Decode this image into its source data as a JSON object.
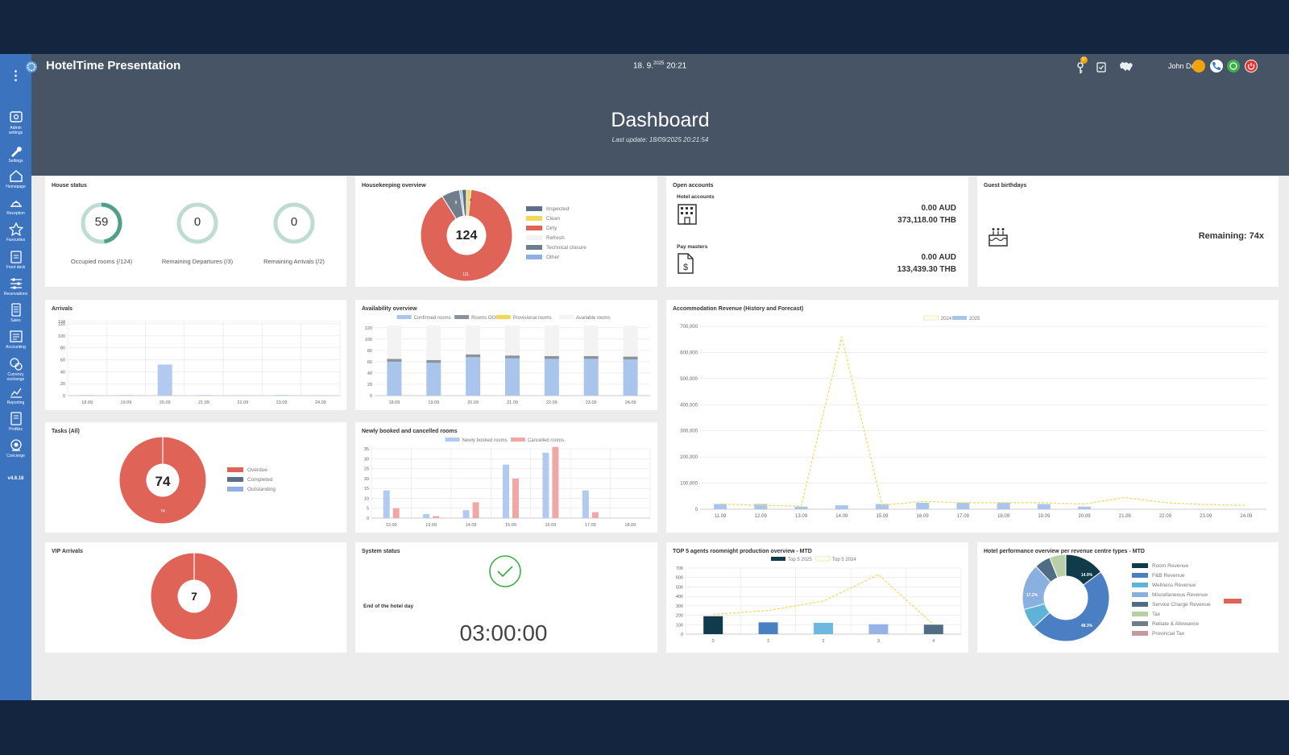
{
  "app": {
    "title": "HotelTime Presentation",
    "date": "18. 9.",
    "year_sup": "2025",
    "time": "20:21",
    "user": "John Does",
    "notification_badge": "57",
    "version": "v4.6.16"
  },
  "header": {
    "title": "Dashboard",
    "subtitle": "Last update: 18/09/2025 20:21:54"
  },
  "sidebar": {
    "items": [
      {
        "label1": "Admin",
        "label2": "settings",
        "icon": "gear-box-icon"
      },
      {
        "label1": "Settings",
        "label2": "",
        "icon": "wrench-icon"
      },
      {
        "label1": "Homepage",
        "label2": "",
        "icon": "home-icon"
      },
      {
        "label1": "Reception",
        "label2": "",
        "icon": "bell-icon"
      },
      {
        "label1": "Favourites",
        "label2": "",
        "icon": "star-icon"
      },
      {
        "label1": "Front desk",
        "label2": "",
        "icon": "clipboard-icon"
      },
      {
        "label1": "Reservations",
        "label2": "",
        "icon": "sliders-icon"
      },
      {
        "label1": "Sales",
        "label2": "",
        "icon": "document-icon"
      },
      {
        "label1": "Accounting",
        "label2": "",
        "icon": "ledger-icon"
      },
      {
        "label1": "Currency",
        "label2": "exchange",
        "icon": "coins-icon"
      },
      {
        "label1": "Reporting",
        "label2": "",
        "icon": "chart-icon"
      },
      {
        "label1": "Profiles",
        "label2": "",
        "icon": "book-icon"
      },
      {
        "label1": "Concierge",
        "label2": "",
        "icon": "concierge-icon"
      }
    ]
  },
  "house_status": {
    "title": "House status",
    "gauges": [
      {
        "value": "59",
        "label": "Occupied rooms (/124)",
        "fraction": 0.476
      },
      {
        "value": "0",
        "label": "Remaining Departures (/3)",
        "fraction": 0
      },
      {
        "value": "0",
        "label": "Remaining Arrivals (/2)",
        "fraction": 0
      }
    ]
  },
  "housekeeping": {
    "title": "Housekeeping overview",
    "center": "124",
    "inner_labels": [
      "111",
      "8",
      "4"
    ],
    "legend": [
      {
        "label": "Inspected",
        "color": "#5b7088"
      },
      {
        "label": "Clean",
        "color": "#f1d75a"
      },
      {
        "label": "Dirty",
        "color": "#df6356"
      },
      {
        "label": "Refresh",
        "color": "#f3f3f3"
      },
      {
        "label": "Technical closure",
        "color": "#707d8a"
      },
      {
        "label": "Other",
        "color": "#8fb0e3"
      }
    ]
  },
  "open_accounts": {
    "title": "Open accounts",
    "hotel_label": "Hotel accounts",
    "hotel_aud": "0.00 AUD",
    "hotel_thb": "373,118.00 THB",
    "pay_label": "Pay masters",
    "pay_aud": "0.00 AUD",
    "pay_thb": "133,439.30 THB"
  },
  "birthdays": {
    "title": "Guest birthdays",
    "remaining": "Remaining: 74x"
  },
  "tasks": {
    "title": "Tasks (All)",
    "center": "74",
    "inner": "74",
    "legend": [
      {
        "label": "Overdue",
        "color": "#df6356"
      },
      {
        "label": "Completed",
        "color": "#5b7088"
      },
      {
        "label": "Outstanding",
        "color": "#8fb0e3"
      }
    ]
  },
  "vip": {
    "title": "VIP Arrivals",
    "center": "7"
  },
  "system": {
    "title": "System status",
    "end_label": "End of the hotel day",
    "end_time": "03:00:00"
  },
  "hotel_perf": {
    "title": "Hotel performance overview per revenue centre types - MTD",
    "legend": [
      {
        "label": "Room Revenue",
        "color": "#0f3b4a"
      },
      {
        "label": "F&B Revenue",
        "color": "#4b7fc4"
      },
      {
        "label": "Wellness Revenue",
        "color": "#5fb3d9"
      },
      {
        "label": "Miscellaneous Revenue",
        "color": "#8ab0e0"
      },
      {
        "label": "Service Charge Revenue",
        "color": "#4f6d84"
      },
      {
        "label": "Tax",
        "color": "#b9cfa8"
      },
      {
        "label": "Rebate & Allowance",
        "color": "#6f7e8b"
      },
      {
        "label": "Provincial Tax",
        "color": "#c49aa0"
      }
    ],
    "slice_labels": [
      "14.9%",
      "48.3%",
      "17.2%"
    ]
  },
  "chart_data": [
    {
      "id": "arrivals",
      "type": "bar",
      "title": "Arrivals",
      "categories": [
        "18.09",
        "19.09",
        "20.09",
        "21.09",
        "22.09",
        "23.09",
        "24.09"
      ],
      "values": [
        1,
        1,
        52,
        1,
        0,
        1,
        0
      ],
      "yticks": [
        "124",
        "120",
        "100",
        "80",
        "60",
        "40",
        "20",
        "0"
      ],
      "ylim": [
        0,
        124
      ],
      "grid": true
    },
    {
      "id": "availability",
      "type": "bar",
      "title": "Availability overview",
      "categories": [
        "18.09",
        "19.09",
        "20.09",
        "21.09",
        "22.09",
        "23.09",
        "24.09"
      ],
      "series": [
        {
          "name": "Confirmed rooms",
          "color": "#a9c5ec",
          "values": [
            60,
            58,
            68,
            66,
            65,
            65,
            64
          ]
        },
        {
          "name": "Rooms OOO",
          "color": "#8a939c",
          "values": [
            5,
            5,
            5,
            5,
            5,
            5,
            5
          ]
        },
        {
          "name": "Provisional rooms",
          "color": "#f1d75a",
          "values": [
            0,
            0,
            0,
            0,
            0,
            0,
            0
          ]
        },
        {
          "name": "Available rooms",
          "color": "#f3f3f3",
          "values": [
            59,
            61,
            51,
            53,
            54,
            54,
            55
          ]
        }
      ],
      "yticks": [
        "120",
        "100",
        "80",
        "60",
        "40",
        "20",
        "0"
      ],
      "ylim": [
        0,
        124
      ],
      "stacked": true
    },
    {
      "id": "booked",
      "type": "bar",
      "title": "Newly booked and cancelled rooms",
      "categories": [
        "12.09",
        "13.09",
        "14.09",
        "15.09",
        "16.09",
        "17.09",
        "18.09"
      ],
      "series": [
        {
          "name": "Newly booked rooms",
          "color": "#b2caf0",
          "values": [
            14,
            2,
            4,
            27,
            33,
            14,
            0
          ]
        },
        {
          "name": "Cancelled rooms",
          "color": "#eea9a6",
          "values": [
            5,
            1,
            8,
            20,
            36,
            3,
            0
          ]
        }
      ],
      "yticks": [
        "35",
        "30",
        "25",
        "20",
        "15",
        "10",
        "5",
        "0"
      ],
      "ylim": [
        0,
        35
      ]
    },
    {
      "id": "revenue",
      "type": "line",
      "title": "Accommodation Revenue (History and Forecast)",
      "categories": [
        "11.09",
        "12.09",
        "13.09",
        "14.09",
        "15.09",
        "16.09",
        "17.09",
        "18.09",
        "19.09",
        "20.09",
        "21.09",
        "22.09",
        "23.09",
        "24.09"
      ],
      "series": [
        {
          "name": "2024",
          "style": "dashed",
          "color": "#f1d75a",
          "values": [
            20000,
            15000,
            12000,
            660000,
            15000,
            30000,
            25000,
            25000,
            25000,
            20000,
            45000,
            25000,
            18000,
            15000
          ]
        },
        {
          "name": "2025",
          "style": "bar",
          "color": "#a9c5ec",
          "values": [
            20000,
            20000,
            10000,
            15000,
            20000,
            25000,
            25000,
            25000,
            20000,
            10000,
            0,
            0,
            0,
            0
          ]
        }
      ],
      "yticks": [
        "700,000",
        "600,000",
        "500,000",
        "400,000",
        "300,000",
        "200,000",
        "100,000",
        "0"
      ],
      "ylim": [
        0,
        700000
      ]
    },
    {
      "id": "agents",
      "type": "bar",
      "title": "TOP 5 agents roomnight production overview - MTD",
      "categories": [
        "0",
        "1",
        "2",
        "3",
        "4"
      ],
      "series": [
        {
          "name": "Top 5 2025",
          "color": "#0f3b4a",
          "values": [
            190,
            125,
            120,
            105,
            100
          ]
        },
        {
          "name": "Top 5 2024",
          "style": "dashed",
          "color": "#f1d75a",
          "values": [
            210,
            250,
            350,
            630,
            100
          ]
        }
      ],
      "yticks": [
        "700",
        "600",
        "500",
        "400",
        "300",
        "200",
        "100",
        "0"
      ],
      "ylim": [
        0,
        700
      ]
    },
    {
      "id": "perf_pie",
      "type": "pie",
      "title": "Hotel performance overview per revenue centre types - MTD",
      "labels": [
        "Room Revenue",
        "F&B Revenue",
        "Wellness Revenue",
        "Miscellaneous Revenue",
        "Service Charge Revenue",
        "Tax",
        "Rebate & Allowance",
        "Provincial Tax"
      ],
      "values": [
        14.9,
        48.3,
        7.5,
        17.2,
        6.0,
        6.1,
        0,
        0
      ]
    }
  ]
}
